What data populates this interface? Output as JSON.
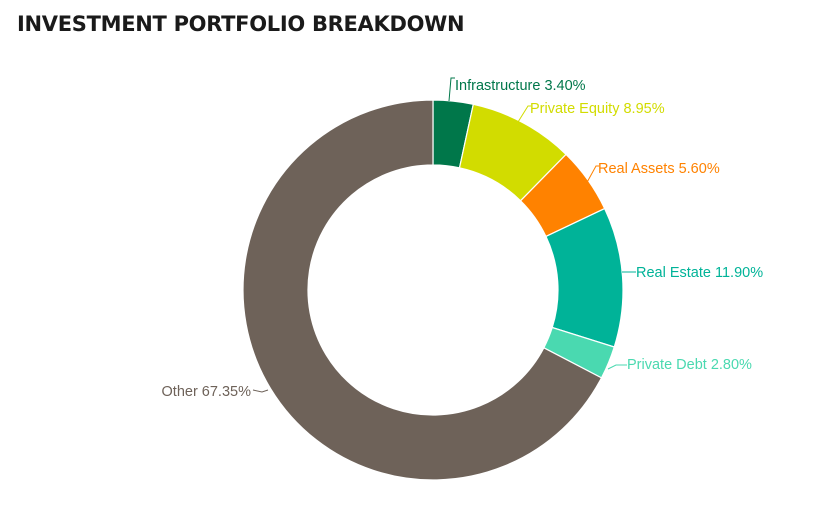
{
  "title": "INVESTMENT PORTFOLIO BREAKDOWN",
  "chart_data": {
    "type": "pie",
    "subtype": "donut",
    "title": "INVESTMENT PORTFOLIO BREAKDOWN",
    "categories": [
      "Infrastructure",
      "Private Equity",
      "Real Assets",
      "Real Estate",
      "Private Debt",
      "Other"
    ],
    "values": [
      3.4,
      8.95,
      5.6,
      11.9,
      2.8,
      67.35
    ],
    "unit": "%",
    "colors": [
      "#00774A",
      "#D2DC00",
      "#FF8200",
      "#00B398",
      "#4AD9B0",
      "#6E6259"
    ],
    "labels": [
      "Infrastructure 3.40%",
      "Private Equity 8.95%",
      "Real Assets 5.60%",
      "Real Estate 11.90%",
      "Private Debt 2.80%",
      "Other 67.35%"
    ],
    "start_angle_deg": 0,
    "direction": "clockwise",
    "legend": "none (outside data labels with leader lines)"
  }
}
